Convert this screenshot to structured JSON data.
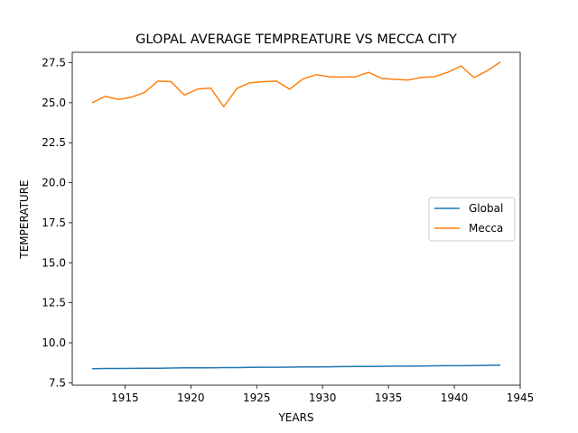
{
  "chart_data": {
    "type": "line",
    "title": "GLOPAL AVERAGE TEMPREATURE VS MECCA CITY",
    "xlabel": "YEARS",
    "ylabel": "TEMPERATURE",
    "xlim": [
      1911,
      1945
    ],
    "ylim": [
      7.35,
      28.15
    ],
    "xticks": [
      1915,
      1920,
      1925,
      1930,
      1935,
      1940,
      1945
    ],
    "yticks": [
      7.5,
      10.0,
      12.5,
      15.0,
      17.5,
      20.0,
      22.5,
      25.0,
      27.5
    ],
    "ytick_labels": [
      "7.5",
      "10.0",
      "12.5",
      "15.0",
      "17.5",
      "20.0",
      "22.5",
      "25.0",
      "27.5"
    ],
    "grid": false,
    "legend_position": "center-right",
    "x": [
      1912.5,
      1913.5,
      1914.5,
      1915.5,
      1916.5,
      1917.5,
      1918.5,
      1919.5,
      1920.5,
      1921.5,
      1922.5,
      1923.5,
      1924.5,
      1925.5,
      1926.5,
      1927.5,
      1928.5,
      1929.5,
      1930.5,
      1931.5,
      1932.5,
      1933.5,
      1934.5,
      1935.5,
      1936.5,
      1937.5,
      1938.5,
      1939.5,
      1940.5,
      1941.5,
      1942.5,
      1943.5
    ],
    "series": [
      {
        "name": "Global",
        "color": "#1f77b4",
        "values": [
          8.38,
          8.39,
          8.39,
          8.4,
          8.41,
          8.41,
          8.42,
          8.43,
          8.43,
          8.44,
          8.45,
          8.45,
          8.46,
          8.47,
          8.47,
          8.48,
          8.49,
          8.49,
          8.5,
          8.51,
          8.52,
          8.52,
          8.53,
          8.54,
          8.54,
          8.55,
          8.56,
          8.57,
          8.57,
          8.58,
          8.59,
          8.6
        ]
      },
      {
        "name": "Mecca",
        "color": "#ff7f0e",
        "values": [
          25.0,
          25.4,
          25.2,
          25.35,
          25.65,
          26.35,
          26.32,
          25.48,
          25.85,
          25.92,
          24.75,
          25.9,
          26.25,
          26.32,
          26.35,
          25.85,
          26.48,
          26.75,
          26.62,
          26.6,
          26.62,
          26.9,
          26.52,
          26.46,
          26.42,
          26.58,
          26.63,
          26.9,
          27.3,
          26.57,
          27.0,
          27.55
        ]
      }
    ]
  }
}
